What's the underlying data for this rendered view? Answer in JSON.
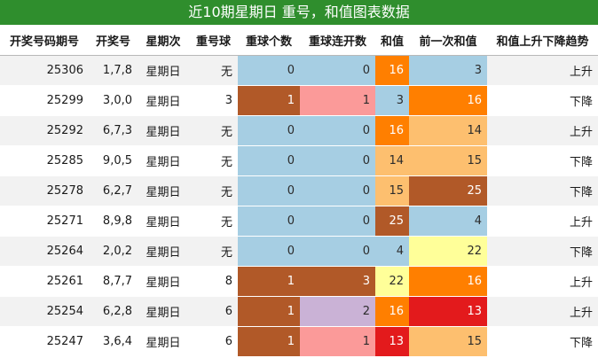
{
  "title": "近10期星期日 重号，和值图表数据",
  "headers": [
    "开奖号码期号",
    "开奖号",
    "星期次",
    "重号球",
    "重球个数",
    "重球连开数",
    "和值",
    "前一次和值",
    "和值上升下降趋势"
  ],
  "rows": [
    {
      "issue": "25306",
      "draw": "1,7,8",
      "weekday": "星期日",
      "repeat_ball": "无",
      "repeat_count": "0",
      "repeat_streak": "0",
      "sum": "16",
      "prev_sum": "3",
      "trend": "上升"
    },
    {
      "issue": "25299",
      "draw": "3,0,0",
      "weekday": "星期日",
      "repeat_ball": "3",
      "repeat_count": "1",
      "repeat_streak": "1",
      "sum": "3",
      "prev_sum": "16",
      "trend": "下降"
    },
    {
      "issue": "25292",
      "draw": "6,7,3",
      "weekday": "星期日",
      "repeat_ball": "无",
      "repeat_count": "0",
      "repeat_streak": "0",
      "sum": "16",
      "prev_sum": "14",
      "trend": "上升"
    },
    {
      "issue": "25285",
      "draw": "9,0,5",
      "weekday": "星期日",
      "repeat_ball": "无",
      "repeat_count": "0",
      "repeat_streak": "0",
      "sum": "14",
      "prev_sum": "15",
      "trend": "下降"
    },
    {
      "issue": "25278",
      "draw": "6,2,7",
      "weekday": "星期日",
      "repeat_ball": "无",
      "repeat_count": "0",
      "repeat_streak": "0",
      "sum": "15",
      "prev_sum": "25",
      "trend": "下降"
    },
    {
      "issue": "25271",
      "draw": "8,9,8",
      "weekday": "星期日",
      "repeat_ball": "无",
      "repeat_count": "0",
      "repeat_streak": "0",
      "sum": "25",
      "prev_sum": "4",
      "trend": "上升"
    },
    {
      "issue": "25264",
      "draw": "2,0,2",
      "weekday": "星期日",
      "repeat_ball": "无",
      "repeat_count": "0",
      "repeat_streak": "0",
      "sum": "4",
      "prev_sum": "22",
      "trend": "下降"
    },
    {
      "issue": "25261",
      "draw": "8,7,7",
      "weekday": "星期日",
      "repeat_ball": "8",
      "repeat_count": "1",
      "repeat_streak": "3",
      "sum": "22",
      "prev_sum": "16",
      "trend": "上升"
    },
    {
      "issue": "25254",
      "draw": "6,2,8",
      "weekday": "星期日",
      "repeat_ball": "6",
      "repeat_count": "1",
      "repeat_streak": "2",
      "sum": "16",
      "prev_sum": "13",
      "trend": "上升"
    },
    {
      "issue": "25247",
      "draw": "3,6,4",
      "weekday": "星期日",
      "repeat_ball": "6",
      "repeat_count": "1",
      "repeat_streak": "1",
      "sum": "13",
      "prev_sum": "15",
      "trend": "下降"
    }
  ],
  "colors": {
    "title_bg": "#2f8e2d",
    "heat": {
      "count_0": "#a6cee3",
      "count_1": "#b15928",
      "streak_0": "#a6cee3",
      "streak_1": "#fb9a99",
      "streak_2": "#cab2d6",
      "streak_3": "#b15928",
      "sum_3": "#a6cee3",
      "sum_4": "#a6cee3",
      "sum_13": "#e31a1c",
      "sum_14": "#fdbf6f",
      "sum_15": "#fdbf6f",
      "sum_16": "#ff7f00",
      "sum_22": "#ffff99",
      "sum_25": "#b15928"
    }
  }
}
